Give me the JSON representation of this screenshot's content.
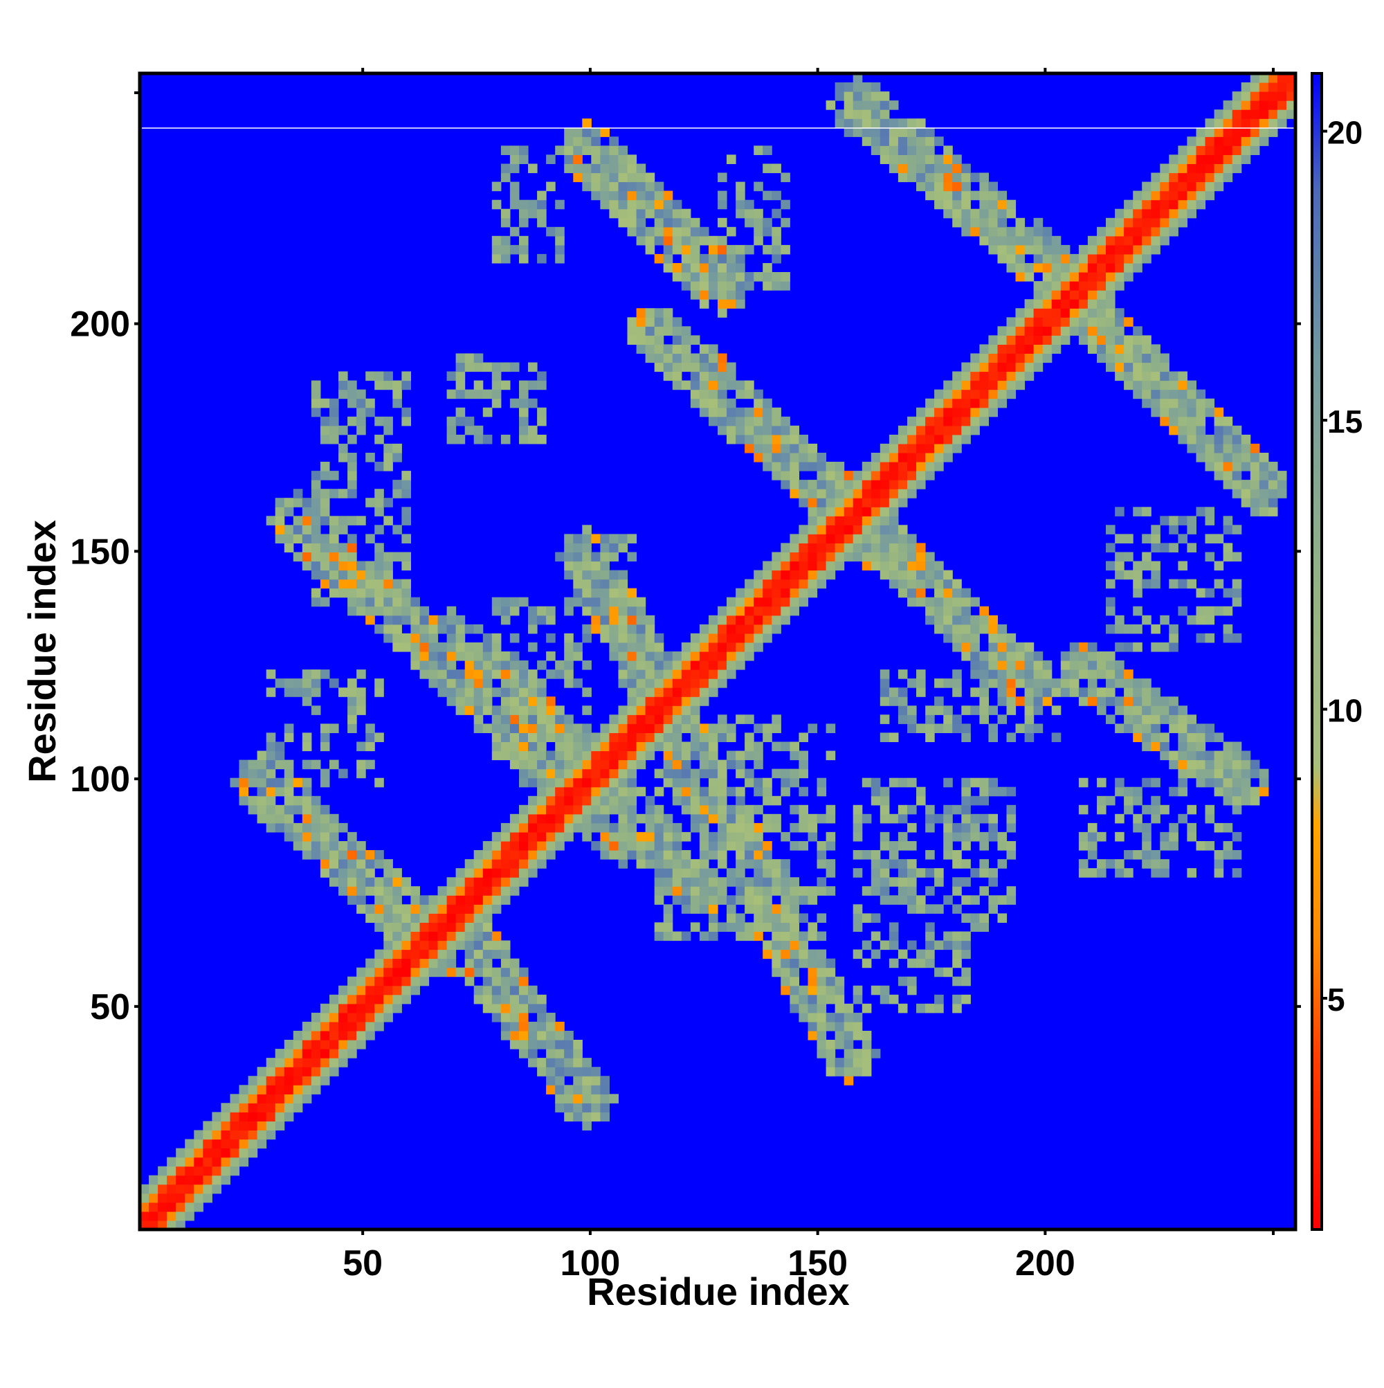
{
  "chart_data": {
    "type": "heatmap",
    "title": "",
    "xlabel": "Residue index",
    "ylabel": "Residue index",
    "xlim": [
      1,
      255
    ],
    "ylim": [
      1,
      255
    ],
    "x_ticks": [
      50,
      100,
      150,
      200
    ],
    "y_ticks": [
      50,
      100,
      150,
      200
    ],
    "x_tick_labels": [
      "50",
      "100",
      "150",
      "200"
    ],
    "y_tick_labels": [
      "50",
      "100",
      "150",
      "200"
    ],
    "colorbar": {
      "range": [
        1,
        21
      ],
      "ticks": [
        5,
        10,
        15,
        20
      ],
      "tick_labels": [
        "5",
        "10",
        "15",
        "20"
      ],
      "stops": [
        {
          "value": 1,
          "color": "#ff0000"
        },
        {
          "value": 4,
          "color": "#ff4000"
        },
        {
          "value": 6,
          "color": "#ff8a00"
        },
        {
          "value": 8,
          "color": "#ffa500"
        },
        {
          "value": 9,
          "color": "#a8bf7a"
        },
        {
          "value": 12,
          "color": "#95b483"
        },
        {
          "value": 16,
          "color": "#7399a0"
        },
        {
          "value": 19,
          "color": "#4a6ab9"
        },
        {
          "value": 21,
          "color": "#0000ff"
        }
      ]
    },
    "background_value": 21,
    "grid": false,
    "diagonal_band": {
      "from": [
        1,
        1
      ],
      "to": [
        255,
        255
      ],
      "core_halfwidth": 2,
      "mid_halfwidth": 4,
      "outer_halfwidth": 7
    },
    "contact_bands": [
      {
        "from": [
          28,
          100
        ],
        "to": [
          68,
          63
        ],
        "halfwidth": 6
      },
      {
        "from": [
          36,
          158
        ],
        "to": [
          108,
          88
        ],
        "halfwidth": 6
      },
      {
        "from": [
          70,
          70
        ],
        "to": [
          100,
          30
        ],
        "halfwidth": 6
      },
      {
        "from": [
          70,
          132
        ],
        "to": [
          125,
          77
        ],
        "halfwidth": 6
      },
      {
        "from": [
          100,
          150
        ],
        "to": [
          158,
          40
        ],
        "halfwidth": 6
      },
      {
        "from": [
          115,
          200
        ],
        "to": [
          158,
          160
        ],
        "halfwidth": 6
      },
      {
        "from": [
          100,
          240
        ],
        "to": [
          130,
          210
        ],
        "halfwidth": 6
      },
      {
        "from": [
          158,
          160
        ],
        "to": [
          200,
          120
        ],
        "halfwidth": 6
      },
      {
        "from": [
          160,
          250
        ],
        "to": [
          205,
          212
        ],
        "halfwidth": 6
      },
      {
        "from": [
          210,
          205
        ],
        "to": [
          250,
          165
        ],
        "halfwidth": 6
      },
      {
        "from": [
          210,
          125
        ],
        "to": [
          245,
          100
        ],
        "halfwidth": 6
      }
    ],
    "sparse_patches": [
      {
        "x": [
          40,
          60
        ],
        "y": [
          140,
          190
        ]
      },
      {
        "x": [
          70,
          90
        ],
        "y": [
          175,
          195
        ]
      },
      {
        "x": [
          80,
          95
        ],
        "y": [
          215,
          240
        ]
      },
      {
        "x": [
          130,
          145
        ],
        "y": [
          210,
          240
        ]
      },
      {
        "x": [
          80,
          100
        ],
        "y": [
          100,
          140
        ]
      },
      {
        "x": [
          100,
          110
        ],
        "y": [
          140,
          155
        ]
      },
      {
        "x": [
          30,
          55
        ],
        "y": [
          100,
          125
        ]
      },
      {
        "x": [
          115,
          155
        ],
        "y": [
          65,
          115
        ]
      },
      {
        "x": [
          160,
          195
        ],
        "y": [
          65,
          100
        ]
      },
      {
        "x": [
          165,
          190
        ],
        "y": [
          110,
          125
        ]
      },
      {
        "x": [
          160,
          185
        ],
        "y": [
          50,
          65
        ]
      },
      {
        "x": [
          210,
          245
        ],
        "y": [
          80,
          100
        ]
      },
      {
        "x": [
          215,
          245
        ],
        "y": [
          130,
          160
        ]
      },
      {
        "x": [
          190,
          205
        ],
        "y": [
          110,
          125
        ]
      }
    ]
  }
}
